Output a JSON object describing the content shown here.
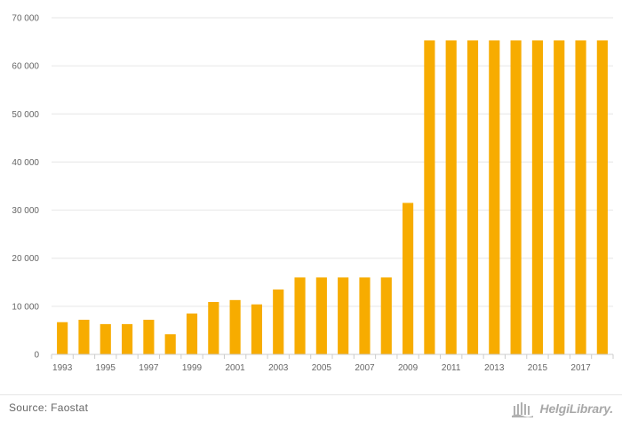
{
  "chart_data": {
    "type": "bar",
    "categories": [
      "1993",
      "1994",
      "1995",
      "1996",
      "1997",
      "1998",
      "1999",
      "2000",
      "2001",
      "2002",
      "2003",
      "2004",
      "2005",
      "2006",
      "2007",
      "2008",
      "2009",
      "2010",
      "2011",
      "2012",
      "2013",
      "2014",
      "2015",
      "2016",
      "2017",
      "2018"
    ],
    "values": [
      6700,
      7200,
      6300,
      6300,
      7200,
      4200,
      8500,
      10900,
      11300,
      10400,
      13500,
      16000,
      16000,
      16000,
      16000,
      16000,
      31500,
      65300,
      65300,
      65300,
      65300,
      65300,
      65300,
      65300,
      65300,
      65300
    ],
    "x_tick_labels": [
      "1993",
      "1995",
      "1997",
      "1999",
      "2001",
      "2003",
      "2005",
      "2007",
      "2009",
      "2011",
      "2013",
      "2015",
      "2017"
    ],
    "y_tick_labels": [
      "0",
      "10 000",
      "20 000",
      "30 000",
      "40 000",
      "50 000",
      "60 000",
      "70 000"
    ],
    "ylim": [
      0,
      70000
    ],
    "grid": true,
    "bar_color": "#f7ac00"
  },
  "footer": {
    "source_text": "Source: Faostat",
    "brand_text": "HelgiLibrary."
  }
}
